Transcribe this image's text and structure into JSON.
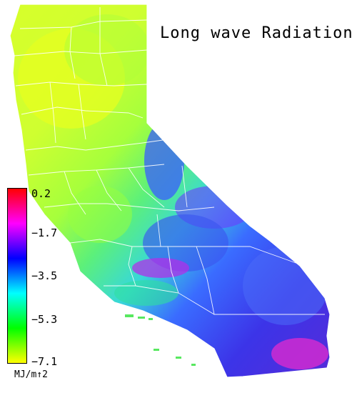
{
  "map": {
    "title": "Long wave Radiation",
    "region": "California",
    "legend": {
      "units": "MJ/m↑2",
      "ticks": [
        "0.2",
        "−1.7",
        "−3.5",
        "−5.3",
        "−7.1"
      ],
      "tick_values": [
        0.2,
        -1.7,
        -3.5,
        -5.3,
        -7.1
      ],
      "range": [
        -7.1,
        0.2
      ],
      "colors": [
        "#ff0000",
        "#ff00ff",
        "#0000ff",
        "#00ffff",
        "#00ff00",
        "#ffff00"
      ]
    }
  }
}
